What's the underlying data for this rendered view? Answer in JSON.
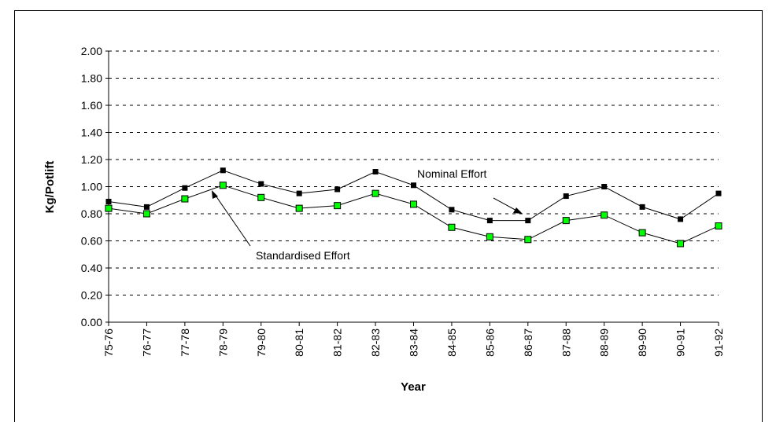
{
  "chart_data": {
    "type": "line",
    "x_label": "Year",
    "y_label": "Kg/Potlift",
    "categories": [
      "75-76",
      "76-77",
      "77-78",
      "78-79",
      "79-80",
      "80-81",
      "81-82",
      "82-83",
      "83-84",
      "84-85",
      "85-86",
      "86-87",
      "87-88",
      "88-89",
      "89-90",
      "90-91",
      "91-92"
    ],
    "series": [
      {
        "name": "Nominal Effort",
        "color": "#000000",
        "values": [
          0.89,
          0.85,
          0.99,
          1.12,
          1.02,
          0.95,
          0.98,
          1.11,
          1.01,
          0.83,
          0.75,
          0.75,
          0.93,
          1.0,
          0.85,
          0.76,
          0.95
        ]
      },
      {
        "name": "Standardised Effort",
        "color": "#00ff00",
        "values": [
          0.84,
          0.8,
          0.91,
          1.01,
          0.92,
          0.84,
          0.86,
          0.95,
          0.87,
          0.7,
          0.63,
          0.61,
          0.75,
          0.79,
          0.66,
          0.58,
          0.71
        ]
      }
    ],
    "ylim": [
      0,
      2
    ],
    "yticks": [
      {
        "value": 0,
        "label": "0.00"
      },
      {
        "value": 0.2,
        "label": "0.20"
      },
      {
        "value": 0.4,
        "label": "0.40"
      },
      {
        "value": 0.6,
        "label": "0.60"
      },
      {
        "value": 0.8,
        "label": "0.80"
      },
      {
        "value": 1,
        "label": "1.00"
      },
      {
        "value": 1.2,
        "label": "1.20"
      },
      {
        "value": 1.4,
        "label": "1.40"
      },
      {
        "value": 1.6,
        "label": "1.60"
      },
      {
        "value": 1.8,
        "label": "1.80"
      },
      {
        "value": 2,
        "label": "2.00"
      }
    ],
    "grid": true
  }
}
